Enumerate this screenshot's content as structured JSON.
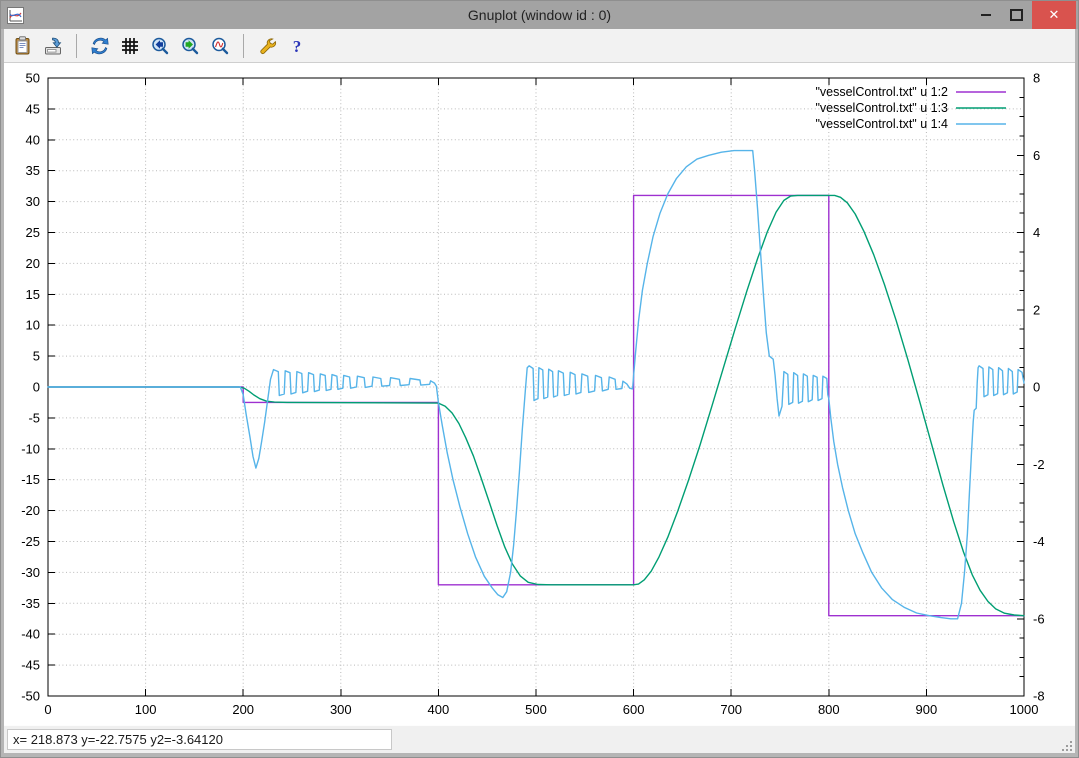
{
  "window": {
    "title": "Gnuplot (window id : 0)",
    "controls": {
      "minimize_glyph": "",
      "maximize_glyph": "",
      "close_glyph": "✕"
    }
  },
  "toolbar": {
    "icons": [
      "clipboard-icon",
      "export-image-icon",
      "refresh-icon",
      "grid-icon",
      "zoom-previous-icon",
      "zoom-next-icon",
      "zoom-autoscale-icon",
      "wrench-icon",
      "help-icon"
    ]
  },
  "statusbar": {
    "text": "x= 218.873 y=-22.7575 y2=-3.64120"
  },
  "chart_data": {
    "type": "line",
    "title": "",
    "x_range": [
      0,
      1000
    ],
    "y_range": [
      -50,
      50
    ],
    "y2_range": [
      -8,
      8
    ],
    "x_ticks": [
      0,
      100,
      200,
      300,
      400,
      500,
      600,
      700,
      800,
      900,
      1000
    ],
    "y_ticks": [
      -50,
      -45,
      -40,
      -35,
      -30,
      -25,
      -20,
      -15,
      -10,
      -5,
      0,
      5,
      10,
      15,
      20,
      25,
      30,
      35,
      40,
      45,
      50
    ],
    "y2_ticks": [
      -8,
      -6,
      -4,
      -2,
      0,
      2,
      4,
      6,
      8
    ],
    "y2_minor_step": 0.5,
    "grid": "dotted",
    "legend_position": "top-right",
    "series": [
      {
        "name": "u1-2",
        "label": "\"vesselControl.txt\" u 1:2",
        "color": "#9e30d0",
        "axis": "y1",
        "points": [
          [
            0,
            0
          ],
          [
            200,
            0
          ],
          [
            200,
            -2.5
          ],
          [
            400,
            -2.5
          ],
          [
            400,
            -32
          ],
          [
            600,
            -32
          ],
          [
            600,
            31
          ],
          [
            800,
            31
          ],
          [
            800,
            -37
          ],
          [
            1000,
            -37
          ]
        ]
      },
      {
        "name": "u1-3",
        "label": "\"vesselControl.txt\" u 1:3",
        "color": "#009e73",
        "axis": "y1",
        "points": [
          [
            0,
            0
          ],
          [
            196,
            0
          ],
          [
            201,
            -0.2
          ],
          [
            206,
            -0.7
          ],
          [
            211,
            -1.3
          ],
          [
            217,
            -1.9
          ],
          [
            224,
            -2.3
          ],
          [
            232,
            -2.45
          ],
          [
            245,
            -2.5
          ],
          [
            400,
            -2.6
          ],
          [
            407,
            -3.1
          ],
          [
            414,
            -4.2
          ],
          [
            421,
            -5.9
          ],
          [
            428,
            -8.2
          ],
          [
            436,
            -11.2
          ],
          [
            444,
            -14.8
          ],
          [
            452,
            -18.6
          ],
          [
            460,
            -22.4
          ],
          [
            468,
            -25.9
          ],
          [
            476,
            -28.7
          ],
          [
            484,
            -30.6
          ],
          [
            492,
            -31.6
          ],
          [
            502,
            -31.95
          ],
          [
            515,
            -32
          ],
          [
            600,
            -32
          ],
          [
            605,
            -31.9
          ],
          [
            611,
            -31.2
          ],
          [
            618,
            -29.8
          ],
          [
            626,
            -27.5
          ],
          [
            635,
            -24.3
          ],
          [
            645,
            -20.2
          ],
          [
            656,
            -15.2
          ],
          [
            668,
            -9.4
          ],
          [
            680,
            -3.2
          ],
          [
            692,
            3.1
          ],
          [
            704,
            9.4
          ],
          [
            716,
            15.5
          ],
          [
            727,
            20.8
          ],
          [
            737,
            25.1
          ],
          [
            746,
            28.3
          ],
          [
            754,
            30.2
          ],
          [
            761,
            30.9
          ],
          [
            768,
            31
          ],
          [
            806,
            31
          ],
          [
            812,
            30.7
          ],
          [
            819,
            29.8
          ],
          [
            827,
            28
          ],
          [
            836,
            25.2
          ],
          [
            846,
            21.4
          ],
          [
            857,
            16.6
          ],
          [
            869,
            10.8
          ],
          [
            881,
            4.4
          ],
          [
            893,
            -2.3
          ],
          [
            905,
            -9.1
          ],
          [
            917,
            -15.9
          ],
          [
            928,
            -21.8
          ],
          [
            938,
            -26.7
          ],
          [
            947,
            -30.4
          ],
          [
            955,
            -32.9
          ],
          [
            963,
            -34.7
          ],
          [
            971,
            -35.9
          ],
          [
            980,
            -36.6
          ],
          [
            990,
            -36.9
          ],
          [
            1000,
            -37
          ]
        ]
      },
      {
        "name": "u1-4",
        "label": "\"vesselControl.txt\" u 1:4",
        "color": "#56b4e9",
        "axis": "y2",
        "points": [
          [
            0,
            0
          ],
          [
            197,
            0
          ],
          [
            200,
            -0.2
          ],
          [
            203,
            -0.7
          ],
          [
            207,
            -1.3
          ],
          [
            210,
            -1.8
          ],
          [
            213,
            -2.1
          ],
          [
            216,
            -1.85
          ],
          [
            219,
            -1.4
          ],
          [
            222,
            -0.9
          ],
          [
            225,
            -0.35
          ],
          [
            228,
            0.2
          ],
          [
            231,
            0.45
          ],
          [
            236,
            0.4
          ],
          [
            237,
            -0.22
          ],
          [
            242,
            -0.18
          ],
          [
            243,
            0.42
          ],
          [
            248,
            0.37
          ],
          [
            249,
            -0.18
          ],
          [
            254,
            -0.14
          ],
          [
            255,
            0.4
          ],
          [
            260,
            0.35
          ],
          [
            261,
            -0.15
          ],
          [
            266,
            -0.11
          ],
          [
            267,
            0.37
          ],
          [
            272,
            0.32
          ],
          [
            273,
            -0.12
          ],
          [
            278,
            -0.08
          ],
          [
            279,
            0.34
          ],
          [
            284,
            0.3
          ],
          [
            285,
            -0.09
          ],
          [
            290,
            -0.06
          ],
          [
            291,
            0.32
          ],
          [
            296,
            0.28
          ],
          [
            297,
            -0.06
          ],
          [
            302,
            -0.03
          ],
          [
            303,
            0.3
          ],
          [
            309,
            0.26
          ],
          [
            310,
            -0.03
          ],
          [
            316,
            0
          ],
          [
            317,
            0.28
          ],
          [
            324,
            0.24
          ],
          [
            325,
            -0.01
          ],
          [
            332,
            0.02
          ],
          [
            333,
            0.26
          ],
          [
            341,
            0.22
          ],
          [
            342,
            0.02
          ],
          [
            350,
            0.04
          ],
          [
            351,
            0.24
          ],
          [
            360,
            0.2
          ],
          [
            361,
            0.04
          ],
          [
            370,
            0.06
          ],
          [
            371,
            0.22
          ],
          [
            381,
            0.18
          ],
          [
            382,
            0.05
          ],
          [
            391,
            0.07
          ],
          [
            392,
            0.16
          ],
          [
            396,
            0.1
          ],
          [
            398,
            0.02
          ],
          [
            400,
            -0.4
          ],
          [
            404,
            -1
          ],
          [
            409,
            -1.7
          ],
          [
            415,
            -2.4
          ],
          [
            422,
            -3.1
          ],
          [
            430,
            -3.8
          ],
          [
            438,
            -4.4
          ],
          [
            447,
            -4.9
          ],
          [
            455,
            -5.2
          ],
          [
            461,
            -5.38
          ],
          [
            466,
            -5.45
          ],
          [
            470,
            -5.3
          ],
          [
            474,
            -4.8
          ],
          [
            477,
            -4.1
          ],
          [
            480,
            -3.2
          ],
          [
            483,
            -2.2
          ],
          [
            486,
            -1.1
          ],
          [
            489,
            -0.1
          ],
          [
            491,
            0.5
          ],
          [
            493,
            0.55
          ],
          [
            497,
            0.48
          ],
          [
            498,
            -0.35
          ],
          [
            502,
            -0.3
          ],
          [
            503,
            0.5
          ],
          [
            507,
            0.44
          ],
          [
            508,
            -0.3
          ],
          [
            512,
            -0.26
          ],
          [
            513,
            0.46
          ],
          [
            517,
            0.4
          ],
          [
            518,
            -0.26
          ],
          [
            522,
            -0.22
          ],
          [
            523,
            0.42
          ],
          [
            528,
            0.36
          ],
          [
            529,
            -0.22
          ],
          [
            534,
            -0.18
          ],
          [
            535,
            0.38
          ],
          [
            540,
            0.32
          ],
          [
            541,
            -0.18
          ],
          [
            546,
            -0.14
          ],
          [
            547,
            0.34
          ],
          [
            553,
            0.28
          ],
          [
            554,
            -0.14
          ],
          [
            560,
            -0.1
          ],
          [
            561,
            0.3
          ],
          [
            567,
            0.24
          ],
          [
            568,
            -0.1
          ],
          [
            574,
            -0.06
          ],
          [
            575,
            0.26
          ],
          [
            581,
            0.2
          ],
          [
            582,
            -0.06
          ],
          [
            588,
            -0.04
          ],
          [
            589,
            0.15
          ],
          [
            593,
            0.08
          ],
          [
            596,
            -0.03
          ],
          [
            599,
            -0.05
          ],
          [
            600,
            0.3
          ],
          [
            602,
            0.9
          ],
          [
            605,
            1.7
          ],
          [
            609,
            2.5
          ],
          [
            614,
            3.2
          ],
          [
            620,
            3.9
          ],
          [
            627,
            4.5
          ],
          [
            635,
            5
          ],
          [
            644,
            5.4
          ],
          [
            654,
            5.7
          ],
          [
            665,
            5.9
          ],
          [
            677,
            6
          ],
          [
            690,
            6.08
          ],
          [
            703,
            6.12
          ],
          [
            714,
            6.12
          ],
          [
            722,
            6.12
          ],
          [
            724,
            5.6
          ],
          [
            727,
            4.6
          ],
          [
            730,
            3.5
          ],
          [
            733,
            2.4
          ],
          [
            736,
            1.4
          ],
          [
            739,
            0.8
          ],
          [
            743,
            0.72
          ],
          [
            745,
            0.3
          ],
          [
            747,
            -0.3
          ],
          [
            749,
            -0.75
          ],
          [
            752,
            -0.5
          ],
          [
            754,
            0.4
          ],
          [
            758,
            0.33
          ],
          [
            759,
            -0.45
          ],
          [
            763,
            -0.4
          ],
          [
            764,
            0.37
          ],
          [
            768,
            0.3
          ],
          [
            769,
            -0.42
          ],
          [
            773,
            -0.37
          ],
          [
            774,
            0.34
          ],
          [
            778,
            0.28
          ],
          [
            779,
            -0.38
          ],
          [
            783,
            -0.33
          ],
          [
            784,
            0.3
          ],
          [
            788,
            0.25
          ],
          [
            789,
            -0.35
          ],
          [
            793,
            -0.3
          ],
          [
            794,
            0.28
          ],
          [
            798,
            0.22
          ],
          [
            799,
            -0.2
          ],
          [
            800,
            -0.3
          ],
          [
            802,
            -0.8
          ],
          [
            805,
            -1.4
          ],
          [
            809,
            -2
          ],
          [
            814,
            -2.6
          ],
          [
            820,
            -3.2
          ],
          [
            827,
            -3.8
          ],
          [
            835,
            -4.3
          ],
          [
            844,
            -4.8
          ],
          [
            854,
            -5.2
          ],
          [
            865,
            -5.5
          ],
          [
            877,
            -5.7
          ],
          [
            890,
            -5.85
          ],
          [
            903,
            -5.92
          ],
          [
            915,
            -5.97
          ],
          [
            925,
            -6
          ],
          [
            932,
            -6
          ],
          [
            936,
            -5.6
          ],
          [
            939,
            -4.8
          ],
          [
            942,
            -3.8
          ],
          [
            944,
            -2.8
          ],
          [
            946,
            -1.8
          ],
          [
            948,
            -0.9
          ],
          [
            949,
            -0.6
          ],
          [
            951,
            -0.55
          ],
          [
            952,
            0.1
          ],
          [
            953,
            0.5
          ],
          [
            954,
            0.55
          ],
          [
            958,
            0.48
          ],
          [
            959,
            -0.25
          ],
          [
            963,
            -0.2
          ],
          [
            964,
            0.52
          ],
          [
            968,
            0.45
          ],
          [
            969,
            -0.22
          ],
          [
            973,
            -0.17
          ],
          [
            974,
            0.5
          ],
          [
            978,
            0.42
          ],
          [
            979,
            -0.2
          ],
          [
            983,
            -0.15
          ],
          [
            984,
            0.48
          ],
          [
            988,
            0.4
          ],
          [
            989,
            -0.18
          ],
          [
            993,
            -0.13
          ],
          [
            994,
            0.45
          ],
          [
            998,
            0.38
          ],
          [
            1000,
            0.1
          ]
        ]
      }
    ]
  }
}
